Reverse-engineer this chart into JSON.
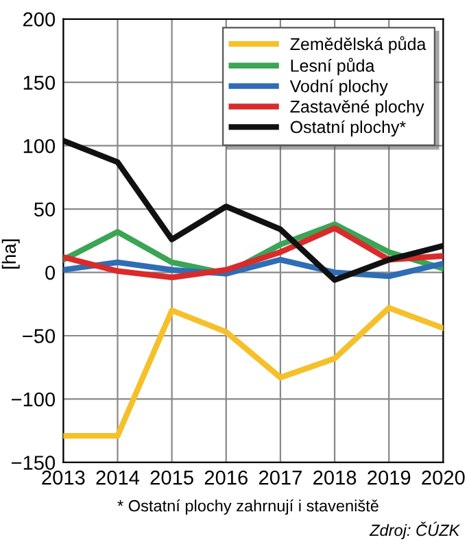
{
  "chart_data": {
    "type": "line",
    "ylabel": "[ha]",
    "x": [
      2013,
      2014,
      2015,
      2016,
      2017,
      2018,
      2019,
      2020
    ],
    "xlim": [
      2013,
      2020
    ],
    "xticks": [
      2013,
      2014,
      2015,
      2016,
      2017,
      2018,
      2019,
      2020
    ],
    "ylim": [
      -150,
      200
    ],
    "yticks": [
      {
        "value": -150,
        "label": "−150"
      },
      {
        "value": -100,
        "label": "−100"
      },
      {
        "value": -50,
        "label": "−50"
      },
      0,
      50,
      100,
      150,
      200
    ],
    "grid": true,
    "legend": "top right",
    "marker": "none",
    "line_style": "solid",
    "series": [
      {
        "name": "Zemědělská půda",
        "color": "#f5c02a",
        "values": [
          -129,
          -129,
          -30,
          -47,
          -83,
          -68,
          -28,
          -44
        ]
      },
      {
        "name": "Lesní půda",
        "color": "#3aa655",
        "values": [
          10,
          32,
          8,
          -1,
          22,
          38,
          16,
          3
        ]
      },
      {
        "name": "Vodní plochy",
        "color": "#2f6db5",
        "values": [
          2,
          8,
          2,
          -1,
          10,
          0,
          -3,
          7
        ]
      },
      {
        "name": "Zastavěné plochy",
        "color": "#d92b2b",
        "values": [
          12,
          1,
          -4,
          2,
          16,
          35,
          10,
          13
        ]
      },
      {
        "name": "Ostatní plochy*",
        "color": "#111111",
        "values": [
          104,
          87,
          26,
          52,
          34,
          -6,
          10,
          21
        ]
      }
    ],
    "annotations": [
      "* Ostatní plochy zahrnují i staveniště",
      "Zdroj: ČÚZK"
    ]
  }
}
